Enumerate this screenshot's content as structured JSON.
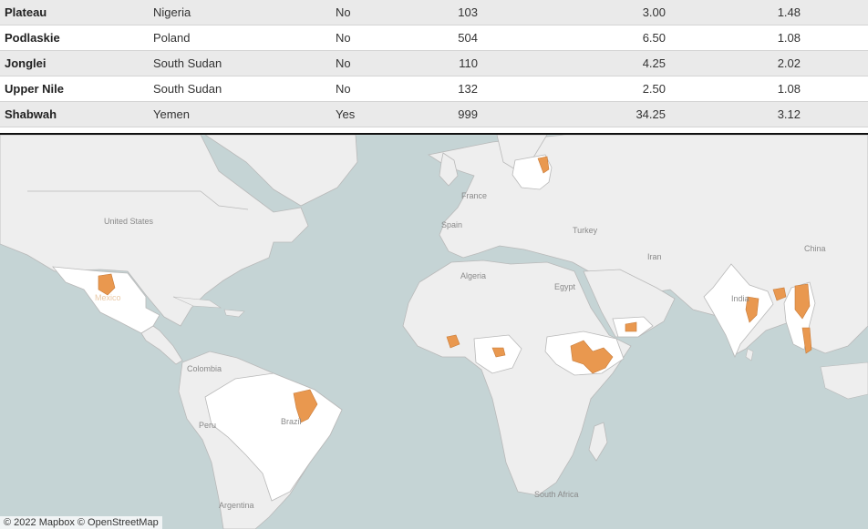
{
  "table": {
    "rows": [
      {
        "region": "Plateau",
        "country": "Nigeria",
        "flag": "No",
        "v1": "103",
        "v2": "3.00",
        "v3": "1.48"
      },
      {
        "region": "Podlaskie",
        "country": "Poland",
        "flag": "No",
        "v1": "504",
        "v2": "6.50",
        "v3": "1.08"
      },
      {
        "region": "Jonglei",
        "country": "South Sudan",
        "flag": "No",
        "v1": "110",
        "v2": "4.25",
        "v3": "2.02"
      },
      {
        "region": "Upper Nile",
        "country": "South Sudan",
        "flag": "No",
        "v1": "132",
        "v2": "2.50",
        "v3": "1.08"
      },
      {
        "region": "Shabwah",
        "country": "Yemen",
        "flag": "Yes",
        "v1": "999",
        "v2": "34.25",
        "v3": "3.12"
      }
    ]
  },
  "map": {
    "labels": {
      "united_states": "United States",
      "mexico": "Mexico",
      "colombia": "Colombia",
      "peru": "Peru",
      "brazil": "Brazil",
      "argentina": "Argentina",
      "france": "France",
      "spain": "Spain",
      "algeria": "Algeria",
      "egypt": "Egypt",
      "turkey": "Turkey",
      "iran": "Iran",
      "india": "India",
      "china": "China",
      "south_africa": "South Africa"
    },
    "colors": {
      "water": "#c5d4d5",
      "land": "#eeeeee",
      "highlighted_country": "#ffffff",
      "highlighted_region": "#e9984f",
      "border": "#b9b9b9"
    },
    "attribution": "© 2022 Mapbox © OpenStreetMap"
  }
}
